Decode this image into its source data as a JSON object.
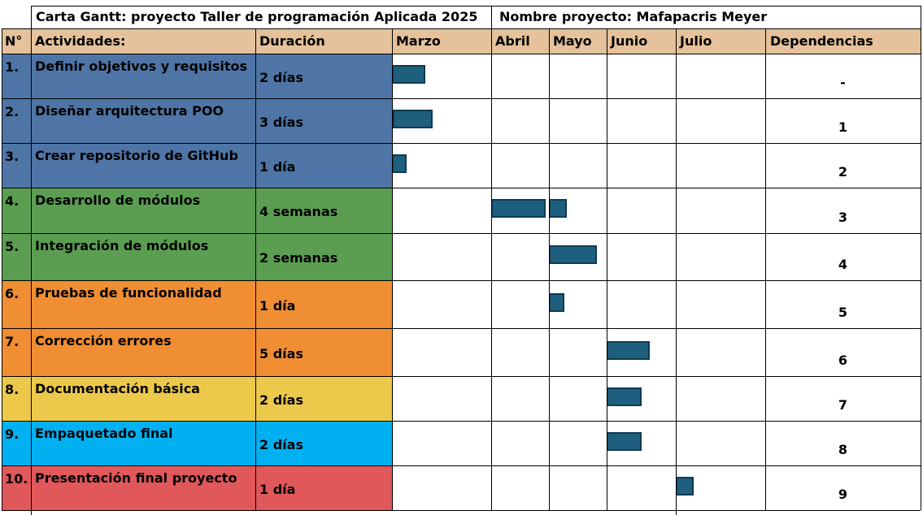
{
  "chart_data": {
    "type": "table",
    "title": "Carta Gantt: proyecto Taller de programación Aplicada 2025",
    "project_label": "Nombre proyecto: Mafapacris Meyer",
    "headers": {
      "n": "N°",
      "activity": "Actividades:",
      "duration": "Duración",
      "dependencies": "Dependencias"
    },
    "months": [
      "Marzo",
      "Abril",
      "Mayo",
      "Junio",
      "Julio"
    ],
    "colors": {
      "header_bg": "#e5c29b",
      "bar_fill": "#1f5f7e",
      "bar_border": "#0e3a52"
    },
    "rows": [
      {
        "num": "1.",
        "activity": "Definir objetivos y requisitos",
        "duration": "2 días",
        "dependency": "-",
        "color": "#4e75a6",
        "bars": [
          {
            "month": "Marzo",
            "start": 0.0,
            "end": 0.34
          }
        ]
      },
      {
        "num": "2.",
        "activity": "Diseñar arquitectura POO",
        "duration": "3 días",
        "dependency": "1",
        "color": "#4e75a6",
        "bars": [
          {
            "month": "Marzo",
            "start": 0.01,
            "end": 0.41
          }
        ]
      },
      {
        "num": "3.",
        "activity": "Crear repositorio de GitHub",
        "duration": "1 día",
        "dependency": "2",
        "color": "#4e75a6",
        "bars": [
          {
            "month": "Marzo",
            "start": 0.0,
            "end": 0.15
          }
        ]
      },
      {
        "num": "4.",
        "activity": "Desarrollo de módulos",
        "duration": "4 semanas",
        "dependency": "3",
        "color": "#5b9e52",
        "bars": [
          {
            "month": "Abril",
            "start": 0.0,
            "end": 0.94
          },
          {
            "month": "Mayo",
            "start": 0.0,
            "end": 0.31
          }
        ]
      },
      {
        "num": "5.",
        "activity": "Integración de módulos",
        "duration": "2 semanas",
        "dependency": "4",
        "color": "#5b9e52",
        "bars": [
          {
            "month": "Mayo",
            "start": 0.0,
            "end": 0.83
          }
        ]
      },
      {
        "num": "6.",
        "activity": "Pruebas de funcionalidad",
        "duration": "1 día",
        "dependency": "5",
        "color": "#f08e33",
        "bars": [
          {
            "month": "Mayo",
            "start": 0.0,
            "end": 0.27
          }
        ]
      },
      {
        "num": "7.",
        "activity": "Corrección errores",
        "duration": "5 días",
        "dependency": "6",
        "color": "#f08e33",
        "bars": [
          {
            "month": "Junio",
            "start": 0.0,
            "end": 0.62
          }
        ]
      },
      {
        "num": "8.",
        "activity": "Documentación básica",
        "duration": "2 días",
        "dependency": "7",
        "color": "#ecc94b",
        "bars": [
          {
            "month": "Junio",
            "start": 0.0,
            "end": 0.5
          }
        ]
      },
      {
        "num": "9.",
        "activity": "Empaquetado final",
        "duration": "2 días",
        "dependency": "8",
        "color": "#00b0f0",
        "bars": [
          {
            "month": "Junio",
            "start": 0.0,
            "end": 0.5
          }
        ]
      },
      {
        "num": "10.",
        "activity": "Presentación final proyecto",
        "duration": "1 día",
        "dependency": "9",
        "color": "#e0585a",
        "bars": [
          {
            "month": "Julio",
            "start": 0.0,
            "end": 0.2
          }
        ]
      }
    ]
  }
}
